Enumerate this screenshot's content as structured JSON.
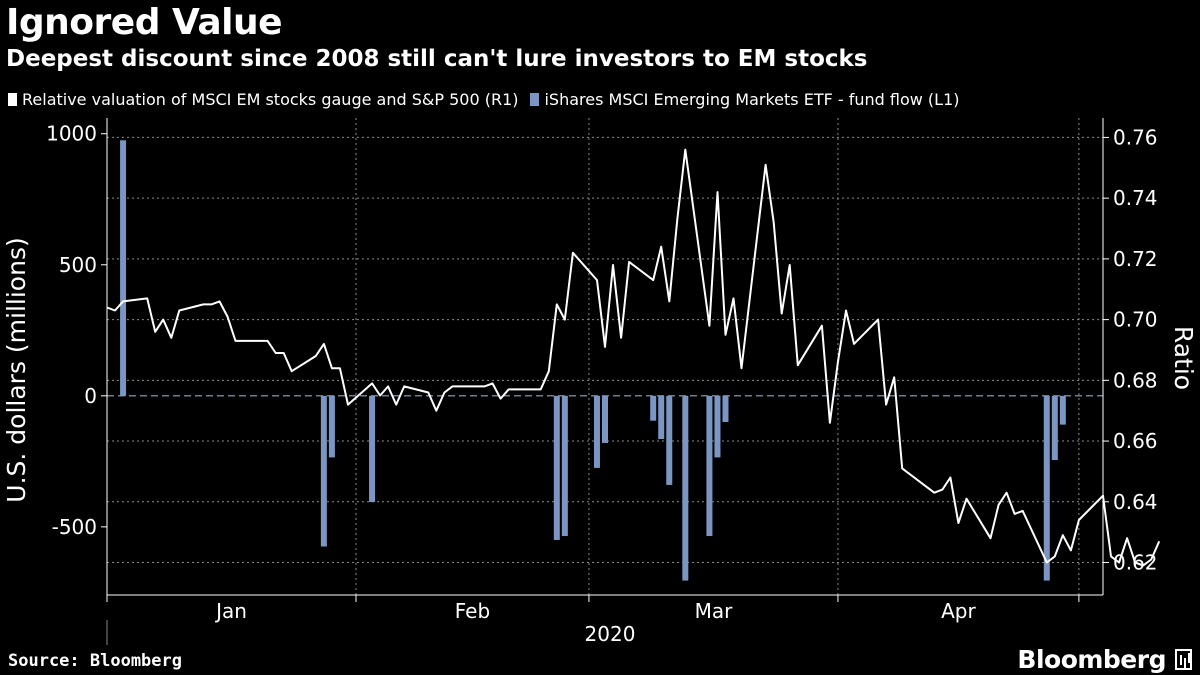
{
  "header": {
    "title": "Ignored Value",
    "subtitle": "Deepest discount since 2008 still can't lure investors to EM stocks"
  },
  "legend": {
    "items": [
      {
        "label": "Relative valuation of MSCI EM stocks gauge and S&P 500 (R1)",
        "color": "#ffffff"
      },
      {
        "label": "iShares MSCI Emerging Markets ETF - fund flow (L1)",
        "color": "#7b96c2"
      }
    ]
  },
  "footer": {
    "source": "Source: Bloomberg",
    "brand": "Bloomberg"
  },
  "chart_data": {
    "type": "bar+line",
    "left_axis": {
      "label": "U.S. dollars (millions)",
      "ticks": [
        -500,
        0,
        500,
        1000
      ],
      "range": [
        -760,
        1060
      ]
    },
    "right_axis": {
      "label": "Ratio",
      "ticks": [
        0.62,
        0.64,
        0.66,
        0.68,
        0.7,
        0.72,
        0.74,
        0.76
      ],
      "range": [
        0.6093,
        0.7664
      ]
    },
    "x_axis": {
      "year_label": "2020",
      "months": [
        {
          "label": "Jan",
          "day_start": 0,
          "day_end": 31
        },
        {
          "label": "Feb",
          "day_start": 31,
          "day_end": 60
        },
        {
          "label": "Mar",
          "day_start": 60,
          "day_end": 91
        },
        {
          "label": "Apr",
          "day_start": 91,
          "day_end": 121
        }
      ],
      "day_range": [
        0,
        124
      ]
    },
    "colors": {
      "bars": "#7b96c2",
      "line": "#ffffff",
      "grid": "#8a8a8a",
      "zero_line": "#9aa6bb"
    },
    "bars": {
      "name": "iShares MSCI Emerging Markets ETF - fund flow (L1)",
      "points": [
        {
          "date": "2020-01-03",
          "value": 975
        },
        {
          "date": "2020-01-28",
          "value": -575
        },
        {
          "date": "2020-01-29",
          "value": -235
        },
        {
          "date": "2020-02-03",
          "value": -405
        },
        {
          "date": "2020-02-26",
          "value": -550
        },
        {
          "date": "2020-02-27",
          "value": -535
        },
        {
          "date": "2020-03-02",
          "value": -275
        },
        {
          "date": "2020-03-03",
          "value": -180
        },
        {
          "date": "2020-03-09",
          "value": -95
        },
        {
          "date": "2020-03-10",
          "value": -165
        },
        {
          "date": "2020-03-11",
          "value": -340
        },
        {
          "date": "2020-03-13",
          "value": -705
        },
        {
          "date": "2020-03-16",
          "value": -535
        },
        {
          "date": "2020-03-17",
          "value": -235
        },
        {
          "date": "2020-03-18",
          "value": -100
        },
        {
          "date": "2020-04-27",
          "value": -705
        },
        {
          "date": "2020-04-28",
          "value": -245
        },
        {
          "date": "2020-04-29",
          "value": -110
        }
      ]
    },
    "line": {
      "name": "Relative valuation of MSCI EM stocks gauge and S&P 500 (R1)",
      "points": [
        {
          "date": "2020-01-01",
          "value": 0.704
        },
        {
          "date": "2020-01-02",
          "value": 0.703
        },
        {
          "date": "2020-01-03",
          "value": 0.706
        },
        {
          "date": "2020-01-06",
          "value": 0.707
        },
        {
          "date": "2020-01-07",
          "value": 0.696
        },
        {
          "date": "2020-01-08",
          "value": 0.7
        },
        {
          "date": "2020-01-09",
          "value": 0.694
        },
        {
          "date": "2020-01-10",
          "value": 0.703
        },
        {
          "date": "2020-01-13",
          "value": 0.705
        },
        {
          "date": "2020-01-14",
          "value": 0.705
        },
        {
          "date": "2020-01-15",
          "value": 0.706
        },
        {
          "date": "2020-01-16",
          "value": 0.701
        },
        {
          "date": "2020-01-17",
          "value": 0.693
        },
        {
          "date": "2020-01-20",
          "value": 0.693
        },
        {
          "date": "2020-01-21",
          "value": 0.693
        },
        {
          "date": "2020-01-22",
          "value": 0.689
        },
        {
          "date": "2020-01-23",
          "value": 0.689
        },
        {
          "date": "2020-01-24",
          "value": 0.683
        },
        {
          "date": "2020-01-27",
          "value": 0.688
        },
        {
          "date": "2020-01-28",
          "value": 0.692
        },
        {
          "date": "2020-01-29",
          "value": 0.684
        },
        {
          "date": "2020-01-30",
          "value": 0.684
        },
        {
          "date": "2020-01-31",
          "value": 0.672
        },
        {
          "date": "2020-02-03",
          "value": 0.679
        },
        {
          "date": "2020-02-04",
          "value": 0.675
        },
        {
          "date": "2020-02-05",
          "value": 0.678
        },
        {
          "date": "2020-02-06",
          "value": 0.672
        },
        {
          "date": "2020-02-07",
          "value": 0.678
        },
        {
          "date": "2020-02-10",
          "value": 0.676
        },
        {
          "date": "2020-02-11",
          "value": 0.67
        },
        {
          "date": "2020-02-12",
          "value": 0.676
        },
        {
          "date": "2020-02-13",
          "value": 0.678
        },
        {
          "date": "2020-02-14",
          "value": 0.678
        },
        {
          "date": "2020-02-17",
          "value": 0.678
        },
        {
          "date": "2020-02-18",
          "value": 0.679
        },
        {
          "date": "2020-02-19",
          "value": 0.674
        },
        {
          "date": "2020-02-20",
          "value": 0.677
        },
        {
          "date": "2020-02-21",
          "value": 0.677
        },
        {
          "date": "2020-02-24",
          "value": 0.677
        },
        {
          "date": "2020-02-25",
          "value": 0.683
        },
        {
          "date": "2020-02-26",
          "value": 0.705
        },
        {
          "date": "2020-02-27",
          "value": 0.7
        },
        {
          "date": "2020-02-28",
          "value": 0.722
        },
        {
          "date": "2020-03-02",
          "value": 0.713
        },
        {
          "date": "2020-03-03",
          "value": 0.691
        },
        {
          "date": "2020-03-04",
          "value": 0.718
        },
        {
          "date": "2020-03-05",
          "value": 0.694
        },
        {
          "date": "2020-03-06",
          "value": 0.719
        },
        {
          "date": "2020-03-09",
          "value": 0.713
        },
        {
          "date": "2020-03-10",
          "value": 0.724
        },
        {
          "date": "2020-03-11",
          "value": 0.706
        },
        {
          "date": "2020-03-12",
          "value": 0.733
        },
        {
          "date": "2020-03-13",
          "value": 0.756
        },
        {
          "date": "2020-03-16",
          "value": 0.698
        },
        {
          "date": "2020-03-17",
          "value": 0.742
        },
        {
          "date": "2020-03-18",
          "value": 0.695
        },
        {
          "date": "2020-03-19",
          "value": 0.707
        },
        {
          "date": "2020-03-20",
          "value": 0.684
        },
        {
          "date": "2020-03-23",
          "value": 0.751
        },
        {
          "date": "2020-03-24",
          "value": 0.732
        },
        {
          "date": "2020-03-25",
          "value": 0.702
        },
        {
          "date": "2020-03-26",
          "value": 0.718
        },
        {
          "date": "2020-03-27",
          "value": 0.685
        },
        {
          "date": "2020-03-30",
          "value": 0.698
        },
        {
          "date": "2020-03-31",
          "value": 0.666
        },
        {
          "date": "2020-04-01",
          "value": 0.686
        },
        {
          "date": "2020-04-02",
          "value": 0.703
        },
        {
          "date": "2020-04-03",
          "value": 0.692
        },
        {
          "date": "2020-04-06",
          "value": 0.7
        },
        {
          "date": "2020-04-07",
          "value": 0.672
        },
        {
          "date": "2020-04-08",
          "value": 0.681
        },
        {
          "date": "2020-04-09",
          "value": 0.651
        },
        {
          "date": "2020-04-13",
          "value": 0.643
        },
        {
          "date": "2020-04-14",
          "value": 0.644
        },
        {
          "date": "2020-04-15",
          "value": 0.648
        },
        {
          "date": "2020-04-16",
          "value": 0.633
        },
        {
          "date": "2020-04-17",
          "value": 0.641
        },
        {
          "date": "2020-04-20",
          "value": 0.628
        },
        {
          "date": "2020-04-21",
          "value": 0.639
        },
        {
          "date": "2020-04-22",
          "value": 0.643
        },
        {
          "date": "2020-04-23",
          "value": 0.636
        },
        {
          "date": "2020-04-24",
          "value": 0.637
        },
        {
          "date": "2020-04-27",
          "value": 0.62
        },
        {
          "date": "2020-04-28",
          "value": 0.622
        },
        {
          "date": "2020-04-29",
          "value": 0.629
        },
        {
          "date": "2020-04-30",
          "value": 0.624
        },
        {
          "date": "2020-05-01",
          "value": 0.634
        },
        {
          "date": "2020-05-04",
          "value": 0.642
        },
        {
          "date": "2020-05-05",
          "value": 0.622
        },
        {
          "date": "2020-05-06",
          "value": 0.62
        },
        {
          "date": "2020-05-07",
          "value": 0.628
        },
        {
          "date": "2020-05-08",
          "value": 0.62
        },
        {
          "date": "2020-05-09",
          "value": 0.619
        },
        {
          "date": "2020-05-10",
          "value": 0.621
        },
        {
          "date": "2020-05-11",
          "value": 0.627
        }
      ]
    }
  }
}
